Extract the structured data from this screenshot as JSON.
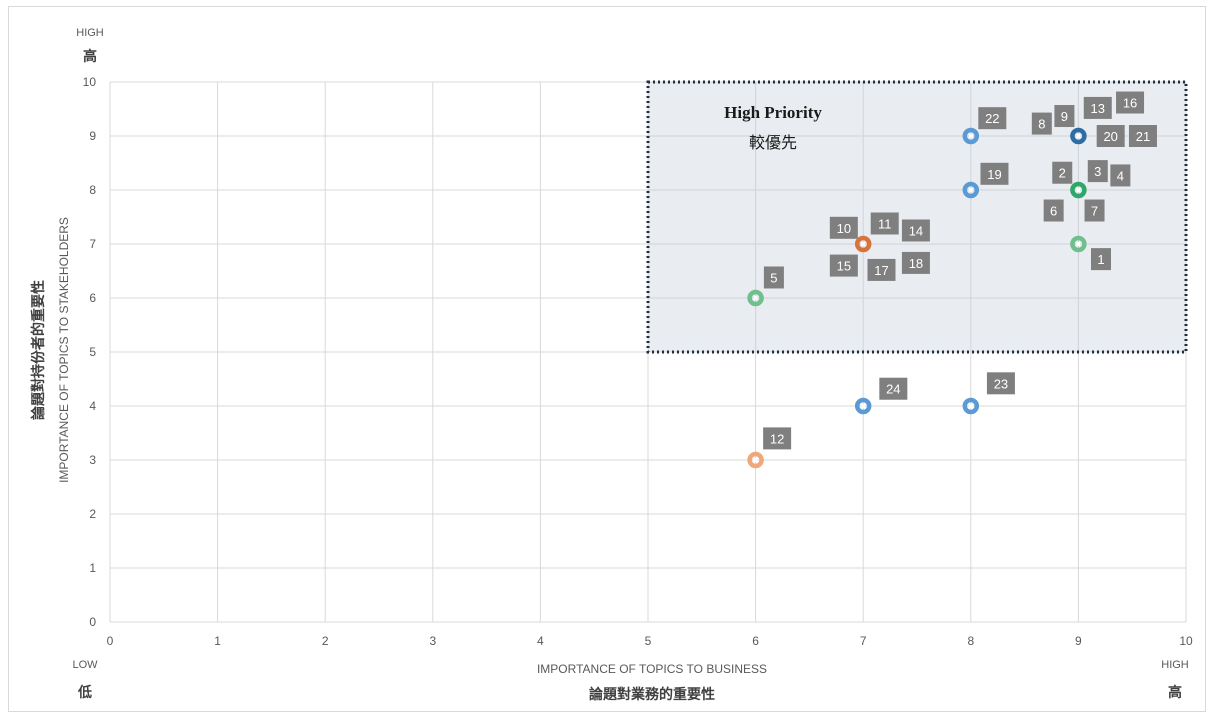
{
  "chart_data": {
    "type": "scatter",
    "xlabel": "IMPORTANCE OF TOPICS TO BUSINESS",
    "xlabel_zh": "論題對業務的重要性",
    "ylabel": "IMPORTANCE OF TOPICS TO STAKEHOLDERS",
    "ylabel_zh": "論題對持份者的重要性",
    "xlim": [
      0,
      10
    ],
    "ylim": [
      0,
      10
    ],
    "x_ticks": [
      "0",
      "1",
      "2",
      "3",
      "4",
      "5",
      "6",
      "7",
      "8",
      "9",
      "10"
    ],
    "y_ticks": [
      "0",
      "1",
      "2",
      "3",
      "4",
      "5",
      "6",
      "7",
      "8",
      "9",
      "10"
    ],
    "grid": true,
    "x_low": {
      "en": "LOW",
      "zh": "低"
    },
    "x_high": {
      "en": "HIGH",
      "zh": "高"
    },
    "y_high": {
      "en": "HIGH",
      "zh": "高"
    },
    "priority_region": {
      "x": [
        5,
        10
      ],
      "y": [
        5,
        10
      ],
      "label_en": "High Priority",
      "label_zh": "較優先"
    },
    "points": [
      {
        "x": 6,
        "y": 6,
        "color": "#6fc08c",
        "topics": [
          "5"
        ]
      },
      {
        "x": 6,
        "y": 3,
        "color": "#f0a87a",
        "topics": [
          "12"
        ]
      },
      {
        "x": 7,
        "y": 7,
        "color": "#d9733a",
        "topics": [
          "10",
          "11",
          "14",
          "15",
          "17",
          "18"
        ]
      },
      {
        "x": 7,
        "y": 4,
        "color": "#5b9bd5",
        "topics": [
          "24"
        ]
      },
      {
        "x": 8,
        "y": 9,
        "color": "#5b9bd5",
        "topics": [
          "22"
        ]
      },
      {
        "x": 8,
        "y": 8,
        "color": "#5b9bd5",
        "topics": [
          "19"
        ]
      },
      {
        "x": 8,
        "y": 4,
        "color": "#5b9bd5",
        "topics": [
          "23"
        ]
      },
      {
        "x": 9,
        "y": 9,
        "color": "#2e6ca4",
        "topics": [
          "8",
          "9",
          "13",
          "16",
          "20",
          "21"
        ]
      },
      {
        "x": 9,
        "y": 8,
        "color": "#2ea86a",
        "topics": [
          "2",
          "3",
          "4",
          "6",
          "7"
        ]
      },
      {
        "x": 9,
        "y": 7,
        "color": "#6fc08c",
        "topics": [
          "1"
        ]
      }
    ],
    "labels": [
      {
        "text": "22",
        "x": 8.2,
        "y": 9.33
      },
      {
        "text": "8",
        "x": 8.66,
        "y": 9.23
      },
      {
        "text": "9",
        "x": 8.87,
        "y": 9.37
      },
      {
        "text": "13",
        "x": 9.18,
        "y": 9.52
      },
      {
        "text": "16",
        "x": 9.48,
        "y": 9.62
      },
      {
        "text": "20",
        "x": 9.3,
        "y": 9.0
      },
      {
        "text": "21",
        "x": 9.6,
        "y": 9.0
      },
      {
        "text": "19",
        "x": 8.22,
        "y": 8.3
      },
      {
        "text": "2",
        "x": 8.85,
        "y": 8.32
      },
      {
        "text": "3",
        "x": 9.18,
        "y": 8.35
      },
      {
        "text": "4",
        "x": 9.39,
        "y": 8.27
      },
      {
        "text": "6",
        "x": 8.77,
        "y": 7.62
      },
      {
        "text": "7",
        "x": 9.15,
        "y": 7.62
      },
      {
        "text": "10",
        "x": 6.82,
        "y": 7.3
      },
      {
        "text": "11",
        "x": 7.2,
        "y": 7.38
      },
      {
        "text": "14",
        "x": 7.49,
        "y": 7.25
      },
      {
        "text": "15",
        "x": 6.82,
        "y": 6.6
      },
      {
        "text": "17",
        "x": 7.17,
        "y": 6.52
      },
      {
        "text": "18",
        "x": 7.49,
        "y": 6.65
      },
      {
        "text": "1",
        "x": 9.21,
        "y": 6.72
      },
      {
        "text": "5",
        "x": 6.17,
        "y": 6.38
      },
      {
        "text": "24",
        "x": 7.28,
        "y": 4.32
      },
      {
        "text": "23",
        "x": 8.28,
        "y": 4.42
      },
      {
        "text": "12",
        "x": 6.2,
        "y": 3.4
      }
    ]
  }
}
